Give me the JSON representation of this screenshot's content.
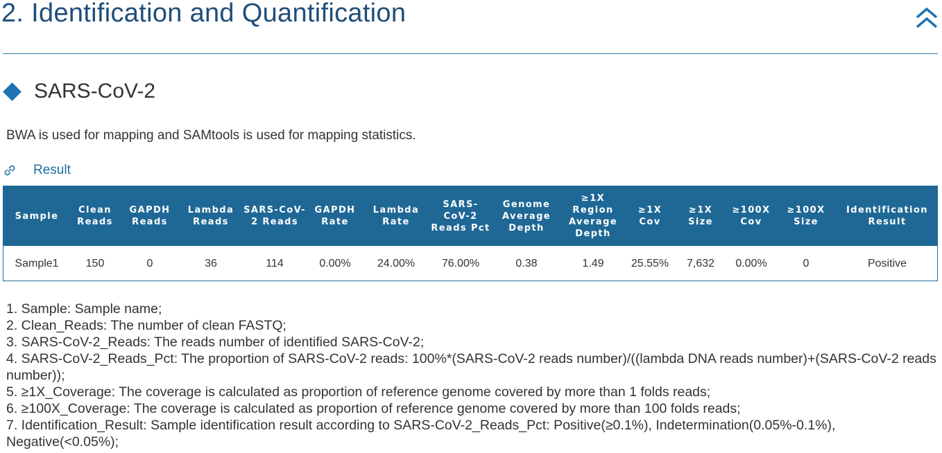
{
  "section": {
    "title": "2. Identification and Quantification",
    "collapse_icon": "double-chevron-up-icon"
  },
  "colors": {
    "title": "#1f4e79",
    "accent": "#1d73b3",
    "table_header": "#1f6896",
    "link": "#1a6fa5"
  },
  "subsection": {
    "icon": "diamond-icon",
    "title": "SARS-CoV-2"
  },
  "intro": "BWA is used for mapping and SAMtools is used for mapping statistics.",
  "result_link": {
    "icon": "link-icon",
    "label": "Result"
  },
  "table": {
    "headers": [
      "Sample",
      "Clean Reads",
      "GAPDH Reads",
      "Lambda Reads",
      "SARS-CoV-2 Reads",
      "GAPDH Rate",
      "Lambda Rate",
      "SARS-CoV-2 Reads Pct",
      "Genome Average Depth",
      "≥1X Region Average Depth",
      "≥1X Cov",
      "≥1X Size",
      "≥100X Cov",
      "≥100X Size",
      "Identification Result"
    ],
    "rows": [
      [
        "Sample1",
        "150",
        "0",
        "36",
        "114",
        "0.00%",
        "24.00%",
        "76.00%",
        "0.38",
        "1.49",
        "25.55%",
        "7,632",
        "0.00%",
        "0",
        "Positive"
      ]
    ]
  },
  "notes": [
    "1. Sample: Sample name;",
    "2. Clean_Reads: The number of clean FASTQ;",
    "3. SARS-CoV-2_Reads: The reads number of identified SARS-CoV-2;",
    "4. SARS-CoV-2_Reads_Pct: The proportion of SARS-CoV-2 reads: 100%*(SARS-CoV-2 reads number)/((lambda DNA reads number)+(SARS-CoV-2 reads number));",
    "5. ≥1X_Coverage: The coverage is calculated as proportion of reference genome covered by more than 1 folds reads;",
    "6. ≥100X_Coverage: The coverage is calculated as proportion of reference genome covered by more than 100 folds reads;",
    "7. Identification_Result: Sample identification result according to SARS-CoV-2_Reads_Pct: Positive(≥0.1%), Indetermination(0.05%-0.1%), Negative(<0.05%);"
  ]
}
